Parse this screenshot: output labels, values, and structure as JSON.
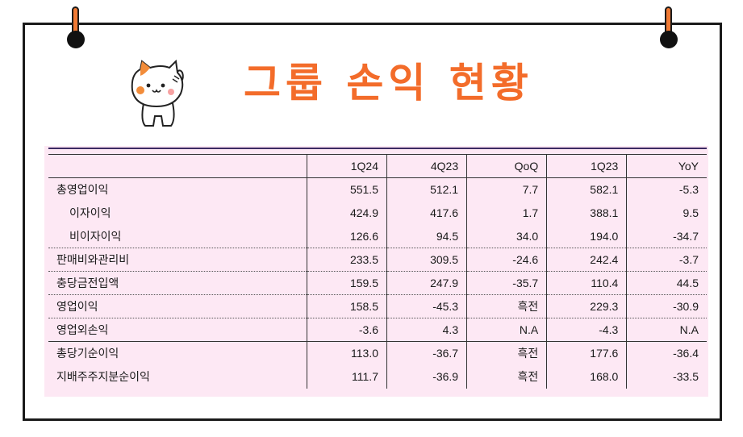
{
  "title": "그룹 손익 현황",
  "table": {
    "headers": [
      "",
      "1Q24",
      "4Q23",
      "QoQ",
      "1Q23",
      "YoY"
    ],
    "rows": [
      {
        "label": "총영업이익",
        "indent": false,
        "values": [
          "551.5",
          "512.1",
          "7.7",
          "582.1",
          "-5.3"
        ]
      },
      {
        "label": "이자이익",
        "indent": true,
        "values": [
          "424.9",
          "417.6",
          "1.7",
          "388.1",
          "9.5"
        ]
      },
      {
        "label": "비이자이익",
        "indent": true,
        "values": [
          "126.6",
          "94.5",
          "34.0",
          "194.0",
          "-34.7"
        ]
      },
      {
        "label": "판매비와관리비",
        "indent": false,
        "values": [
          "233.5",
          "309.5",
          "-24.6",
          "242.4",
          "-3.7"
        ]
      },
      {
        "label": "충당금전입액",
        "indent": false,
        "values": [
          "159.5",
          "247.9",
          "-35.7",
          "110.4",
          "44.5"
        ]
      },
      {
        "label": "영업이익",
        "indent": false,
        "values": [
          "158.5",
          "-45.3",
          "흑전",
          "229.3",
          "-30.9"
        ]
      },
      {
        "label": "영업외손익",
        "indent": false,
        "values": [
          "-3.6",
          "4.3",
          "N.A",
          "-4.3",
          "N.A"
        ]
      },
      {
        "label": "총당기순이익",
        "indent": false,
        "values": [
          "113.0",
          "-36.7",
          "흑전",
          "177.6",
          "-36.4"
        ]
      },
      {
        "label": "지배주주지분순이익",
        "indent": false,
        "values": [
          "111.7",
          "-36.9",
          "흑전",
          "168.0",
          "-33.5"
        ]
      }
    ]
  },
  "colors": {
    "title": "#f36c2a",
    "table_bg": "#fde8f4",
    "pin": "#f07a34"
  },
  "icons": {
    "mascot": "cat-mascot-icon",
    "pins": "pushpin-icon"
  }
}
